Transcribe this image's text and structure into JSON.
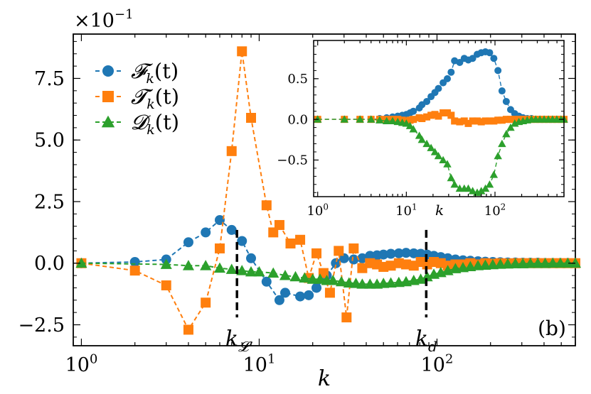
{
  "chart_data": [
    {
      "type": "line",
      "xscale": "log",
      "xlim": [
        0.9,
        600
      ],
      "ylim": [
        -3.35,
        9.3
      ],
      "y_scale_label": "×10",
      "y_scale_exponent": "−1",
      "xlabel": "k",
      "ylabel": "",
      "panel_label": "(b)",
      "x_ticks": [
        {
          "value": 1,
          "base": "10",
          "exp": "0"
        },
        {
          "value": 10,
          "base": "10",
          "exp": "1"
        },
        {
          "value": 100,
          "base": "10",
          "exp": "2"
        }
      ],
      "y_ticks": [
        {
          "value": -2.5,
          "label": "−2.5"
        },
        {
          "value": 0,
          "label": "0.0"
        },
        {
          "value": 2.5,
          "label": "2.5"
        },
        {
          "value": 5.0,
          "label": "5.0"
        },
        {
          "value": 7.5,
          "label": "7.5"
        }
      ],
      "legend_position": "upper-left",
      "series": [
        {
          "name": "𝓕",
          "sub": "k",
          "suffix": "(t)",
          "color": "#1f77b4",
          "marker": "circle",
          "x": [
            1,
            2,
            3,
            4,
            5,
            6,
            7,
            8,
            9,
            11,
            13,
            14,
            17,
            19,
            21,
            24,
            27,
            30,
            34,
            38,
            42,
            46,
            50,
            55,
            61,
            67,
            74,
            81,
            88,
            96,
            105,
            115,
            127,
            140,
            154,
            170,
            187,
            206,
            227,
            250,
            276,
            304,
            335,
            369,
            406,
            448,
            494,
            544,
            600
          ],
          "y": [
            0.0,
            0.05,
            0.15,
            0.85,
            1.25,
            1.75,
            1.35,
            0.9,
            0.2,
            -0.75,
            -1.5,
            -1.2,
            -1.35,
            -1.3,
            -1.0,
            -0.5,
            0.0,
            0.2,
            0.15,
            0.2,
            0.3,
            0.32,
            0.35,
            0.38,
            0.4,
            0.42,
            0.4,
            0.38,
            0.35,
            0.3,
            0.25,
            0.2,
            0.15,
            0.12,
            0.1,
            0.08,
            0.06,
            0.05,
            0.04,
            0.03,
            0.03,
            0.02,
            0.02,
            0.02,
            0.01,
            0.01,
            0.01,
            0.01,
            0.01
          ]
        },
        {
          "name": "𝓣",
          "sub": "k",
          "suffix": "(t)",
          "color": "#ff7f0e",
          "marker": "square",
          "x": [
            1,
            2,
            3,
            4,
            5,
            6,
            7,
            8,
            9,
            11,
            12,
            13,
            15,
            17,
            19,
            21,
            23,
            25,
            28,
            31,
            34,
            38,
            42,
            46,
            50,
            55,
            61,
            67,
            74,
            81,
            88,
            96,
            105,
            115,
            127,
            140,
            154,
            170,
            187,
            206,
            227,
            250,
            276,
            304,
            335,
            369,
            406,
            448,
            494,
            544,
            600
          ],
          "y": [
            0.0,
            -0.3,
            -0.9,
            -2.7,
            -1.6,
            0.6,
            4.55,
            8.6,
            5.9,
            2.35,
            1.25,
            1.55,
            0.8,
            0.95,
            -0.6,
            0.4,
            -0.4,
            -1.2,
            0.5,
            -2.2,
            0.6,
            -0.2,
            0.0,
            -0.05,
            -0.15,
            -0.1,
            0.0,
            -0.05,
            -0.1,
            0.05,
            -0.05,
            0.05,
            0.0,
            -0.1,
            -0.05,
            -0.05,
            0.0,
            -0.05,
            0.0,
            -0.02,
            0.0,
            -0.01,
            0.0,
            0.0,
            0.0,
            0.0,
            0.0,
            0.0,
            0.0,
            0.0,
            0.0
          ]
        },
        {
          "name": "𝓓",
          "sub": "k",
          "suffix": "(t)",
          "color": "#2ca02c",
          "marker": "triangle",
          "x": [
            1,
            3,
            4,
            5,
            6,
            7,
            8,
            9,
            10,
            12,
            14,
            16,
            18,
            20,
            22,
            24,
            26,
            29,
            32,
            35,
            38,
            42,
            46,
            50,
            55,
            61,
            67,
            74,
            81,
            88,
            96,
            105,
            115,
            127,
            140,
            154,
            170,
            187,
            206,
            227,
            250,
            276,
            304,
            335,
            369,
            406,
            448,
            494,
            544,
            600
          ],
          "y": [
            0.0,
            -0.05,
            -0.1,
            -0.1,
            -0.2,
            -0.25,
            -0.3,
            -0.35,
            -0.35,
            -0.4,
            -0.5,
            -0.55,
            -0.6,
            -0.65,
            -0.65,
            -0.7,
            -0.7,
            -0.75,
            -0.8,
            -0.82,
            -0.85,
            -0.85,
            -0.85,
            -0.82,
            -0.8,
            -0.78,
            -0.75,
            -0.7,
            -0.65,
            -0.55,
            -0.45,
            -0.38,
            -0.3,
            -0.22,
            -0.18,
            -0.14,
            -0.1,
            -0.08,
            -0.06,
            -0.04,
            -0.03,
            -0.02,
            -0.02,
            -0.01,
            -0.01,
            -0.01,
            0.0,
            0.0,
            0.0,
            0.0
          ]
        }
      ],
      "annotations": [
        {
          "name": "kL",
          "x": 7.5,
          "y_top": 1.35,
          "y_bottom": -2.2,
          "base": "k",
          "sub": "𝓛"
        },
        {
          "name": "kd",
          "x": 87,
          "y_top": 1.35,
          "y_bottom": -2.2,
          "base": "k",
          "sub": "d"
        }
      ]
    },
    {
      "type": "line",
      "role": "inset",
      "xscale": "log",
      "xlim": [
        0.9,
        600
      ],
      "ylim": [
        -0.95,
        0.97
      ],
      "xlabel": "k",
      "x_ticks": [
        {
          "value": 1,
          "base": "10",
          "exp": "0"
        },
        {
          "value": 10,
          "base": "10",
          "exp": "1"
        },
        {
          "value": 100,
          "base": "10",
          "exp": "2"
        }
      ],
      "y_ticks": [
        {
          "value": -0.5,
          "label": "−0.5"
        },
        {
          "value": 0.0,
          "label": "0.0"
        },
        {
          "value": 0.5,
          "label": "0.5"
        }
      ],
      "series": [
        {
          "color": "#1f77b4",
          "marker": "circle",
          "x": [
            1,
            2,
            3,
            4,
            5,
            6,
            7,
            8,
            9,
            10,
            11,
            12,
            14,
            15,
            17,
            19,
            21,
            23,
            26,
            29,
            32,
            35,
            40,
            45,
            50,
            56,
            63,
            70,
            78,
            87,
            97,
            108,
            120,
            134,
            150,
            167,
            186,
            207,
            231,
            258,
            288,
            321,
            358,
            400,
            446,
            498,
            556,
            600
          ],
          "y": [
            0.0,
            0.0,
            0.0,
            0.0,
            0.01,
            0.02,
            0.03,
            0.04,
            0.05,
            0.06,
            0.08,
            0.1,
            0.14,
            0.18,
            0.22,
            0.28,
            0.33,
            0.38,
            0.45,
            0.5,
            0.58,
            0.72,
            0.7,
            0.75,
            0.73,
            0.75,
            0.8,
            0.82,
            0.83,
            0.82,
            0.75,
            0.6,
            0.35,
            0.22,
            0.12,
            0.07,
            0.04,
            0.02,
            0.01,
            0.01,
            0.0,
            0.0,
            0.0,
            0.0,
            0.0,
            0.0,
            0.0,
            0.0
          ]
        },
        {
          "color": "#ff7f0e",
          "marker": "square",
          "x": [
            1,
            2,
            3,
            4,
            5,
            6,
            7,
            8,
            9,
            10,
            11,
            12,
            14,
            15,
            17,
            19,
            21,
            23,
            26,
            29,
            32,
            35,
            40,
            45,
            50,
            56,
            63,
            70,
            78,
            87,
            97,
            108,
            120,
            134,
            150,
            167,
            186,
            207,
            231,
            258,
            288,
            321,
            358,
            400,
            446,
            498,
            556,
            600
          ],
          "y": [
            0.0,
            0.0,
            0.0,
            0.0,
            0.0,
            0.0,
            0.0,
            0.0,
            -0.01,
            -0.02,
            -0.01,
            0.0,
            0.02,
            0.01,
            0.03,
            0.05,
            0.06,
            0.04,
            0.08,
            0.08,
            0.05,
            -0.02,
            -0.03,
            -0.02,
            -0.05,
            -0.02,
            -0.02,
            -0.03,
            -0.02,
            -0.02,
            -0.02,
            -0.01,
            -0.01,
            0.0,
            0.0,
            0.0,
            0.0,
            0.0,
            0.0,
            0.0,
            0.0,
            0.0,
            0.0,
            0.0,
            0.0,
            0.0,
            0.0,
            0.0
          ]
        },
        {
          "color": "#2ca02c",
          "marker": "triangle",
          "x": [
            1,
            2,
            3,
            4,
            5,
            6,
            7,
            8,
            9,
            10,
            11,
            12,
            14,
            15,
            17,
            19,
            21,
            23,
            26,
            29,
            32,
            35,
            40,
            45,
            50,
            56,
            63,
            70,
            78,
            87,
            97,
            108,
            120,
            134,
            150,
            167,
            186,
            207,
            231,
            258,
            288,
            321,
            358,
            400,
            446,
            498,
            556,
            600
          ],
          "y": [
            0.0,
            0.0,
            0.0,
            0.0,
            -0.01,
            -0.02,
            -0.02,
            -0.03,
            -0.04,
            -0.05,
            -0.08,
            -0.12,
            -0.2,
            -0.25,
            -0.3,
            -0.35,
            -0.4,
            -0.45,
            -0.5,
            -0.55,
            -0.72,
            -0.8,
            -0.85,
            -0.85,
            -0.85,
            -0.88,
            -0.9,
            -0.88,
            -0.85,
            -0.8,
            -0.68,
            -0.45,
            -0.3,
            -0.18,
            -0.1,
            -0.05,
            -0.03,
            -0.02,
            -0.01,
            0.0,
            0.0,
            0.0,
            0.0,
            0.0,
            0.0,
            0.0,
            0.0,
            0.0
          ]
        }
      ]
    }
  ]
}
